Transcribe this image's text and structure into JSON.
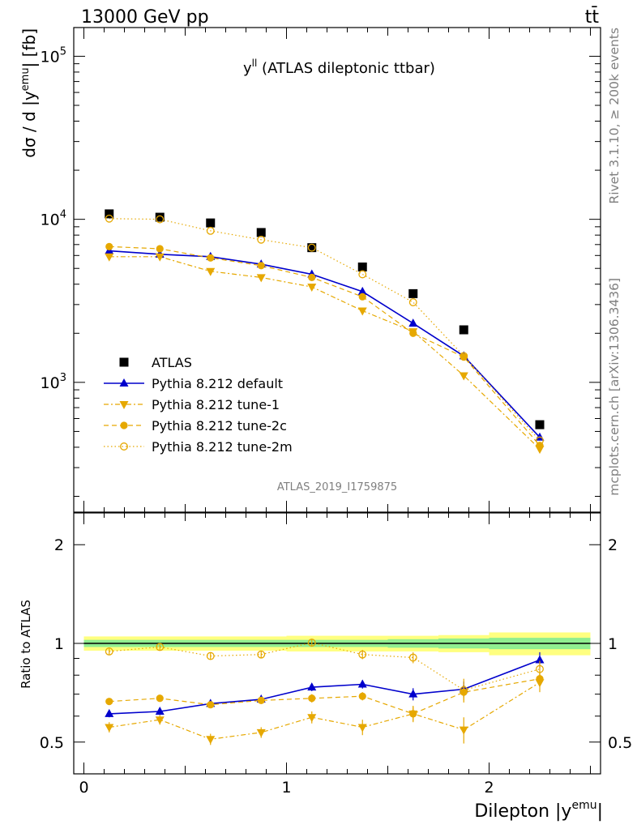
{
  "header": {
    "left": "13000 GeV pp",
    "right": "tt̄"
  },
  "side_labels": {
    "rivet": "Rivet 3.1.10, ≥ 200k events",
    "mcplots": "mcplots.cern.ch [arXiv:1306.3436]"
  },
  "analysis_id": "ATLAS_2019_I1759875",
  "colors": {
    "atlas": "#000000",
    "default": "#0000cc",
    "tune": "#e6a800",
    "band_inner": "#90ee90",
    "band_outer": "#ffff80"
  },
  "chart_data": [
    {
      "type": "scatter",
      "title": "y^ll (ATLAS dileptonic ttbar)",
      "title_main": "y",
      "title_sup": "ll",
      "title_rest": " (ATLAS dileptonic ttbar)",
      "ylabel": "dσ / d |y^emu| [fb]",
      "ylabel_pre": "dσ / d |y",
      "ylabel_sup": "emu",
      "ylabel_post": "| [fb]",
      "yscale": "log",
      "ylim": [
        160,
        150000
      ],
      "xlim": [
        -0.05,
        2.55
      ],
      "ytick_labels": [
        {
          "base": "10",
          "exp": "3",
          "value": 1000
        },
        {
          "base": "10",
          "exp": "4",
          "value": 10000
        },
        {
          "base": "10",
          "exp": "5",
          "value": 100000
        }
      ],
      "legend_position": "bottom-left",
      "x": [
        0.125,
        0.375,
        0.625,
        0.875,
        1.125,
        1.375,
        1.625,
        1.875,
        2.25
      ],
      "x_edges": [
        0,
        0.25,
        0.5,
        0.75,
        1.0,
        1.25,
        1.5,
        1.75,
        2.0,
        2.5
      ],
      "series": [
        {
          "name": "ATLAS",
          "key": "atlas",
          "marker": "square",
          "line": "none",
          "values": [
            10800,
            10300,
            9500,
            8300,
            6700,
            5100,
            3500,
            2100,
            550
          ]
        },
        {
          "name": "Pythia 8.212 default",
          "key": "default",
          "marker": "triangle-up",
          "line": "solid",
          "values": [
            6400,
            6100,
            5900,
            5300,
            4600,
            3600,
            2300,
            1450,
            460
          ]
        },
        {
          "name": "Pythia 8.212 tune-1",
          "key": "tune1",
          "marker": "triangle-down",
          "line": "dashdot",
          "values": [
            5900,
            5900,
            4800,
            4400,
            3850,
            2750,
            2050,
            1100,
            390
          ]
        },
        {
          "name": "Pythia 8.212 tune-2c",
          "key": "tune2c",
          "marker": "circle",
          "line": "dashed",
          "values": [
            6800,
            6600,
            5800,
            5200,
            4400,
            3350,
            2000,
            1430,
            410
          ]
        },
        {
          "name": "Pythia 8.212 tune-2m",
          "key": "tune2m",
          "marker": "circle-open",
          "line": "dotted",
          "values": [
            10100,
            10000,
            8500,
            7500,
            6700,
            4600,
            3100,
            1450,
            440
          ]
        }
      ]
    },
    {
      "type": "scatter",
      "ylabel": "Ratio to ATLAS",
      "xlabel": "Dilepton |y^emu|",
      "xlabel_pre": "Dilepton |y",
      "xlabel_sup": "emu",
      "xlabel_post": "|",
      "yscale": "log",
      "ylim": [
        0.4,
        2.5
      ],
      "xlim": [
        -0.05,
        2.55
      ],
      "ytick_labels": [
        "0.5",
        "1",
        "2"
      ],
      "ytick_values": [
        0.5,
        1,
        2
      ],
      "xtick_labels": [
        "0",
        "1",
        "2"
      ],
      "xtick_values": [
        0,
        1,
        2
      ],
      "band_inner": [
        0.025,
        0.025,
        0.025,
        0.025,
        0.025,
        0.025,
        0.03,
        0.035,
        0.04
      ],
      "band_outer": [
        0.05,
        0.05,
        0.05,
        0.05,
        0.055,
        0.055,
        0.055,
        0.06,
        0.08
      ],
      "series": [
        {
          "name": "Pythia 8.212 default",
          "key": "default",
          "values": [
            0.61,
            0.62,
            0.655,
            0.675,
            0.735,
            0.75,
            0.7,
            0.725,
            0.89
          ],
          "err": [
            0.015,
            0.015,
            0.015,
            0.018,
            0.02,
            0.022,
            0.03,
            0.04,
            0.05
          ]
        },
        {
          "name": "Pythia 8.212 tune-1",
          "key": "tune1",
          "values": [
            0.555,
            0.585,
            0.51,
            0.535,
            0.595,
            0.555,
            0.61,
            0.545,
            0.76
          ],
          "err": [
            0.02,
            0.02,
            0.02,
            0.02,
            0.025,
            0.03,
            0.035,
            0.05,
            0.05
          ]
        },
        {
          "name": "Pythia 8.212 tune-2c",
          "key": "tune2c",
          "values": [
            0.665,
            0.68,
            0.65,
            0.67,
            0.68,
            0.69,
            0.61,
            0.71,
            0.78
          ],
          "err": [
            0.015,
            0.015,
            0.015,
            0.015,
            0.02,
            0.02,
            0.03,
            0.04,
            0.04
          ]
        },
        {
          "name": "Pythia 8.212 tune-2m",
          "key": "tune2m",
          "values": [
            0.945,
            0.975,
            0.915,
            0.925,
            1.005,
            0.925,
            0.905,
            0.72,
            0.835
          ],
          "err": [
            0.02,
            0.02,
            0.02,
            0.02,
            0.025,
            0.03,
            0.035,
            0.06,
            0.05
          ]
        }
      ]
    }
  ]
}
